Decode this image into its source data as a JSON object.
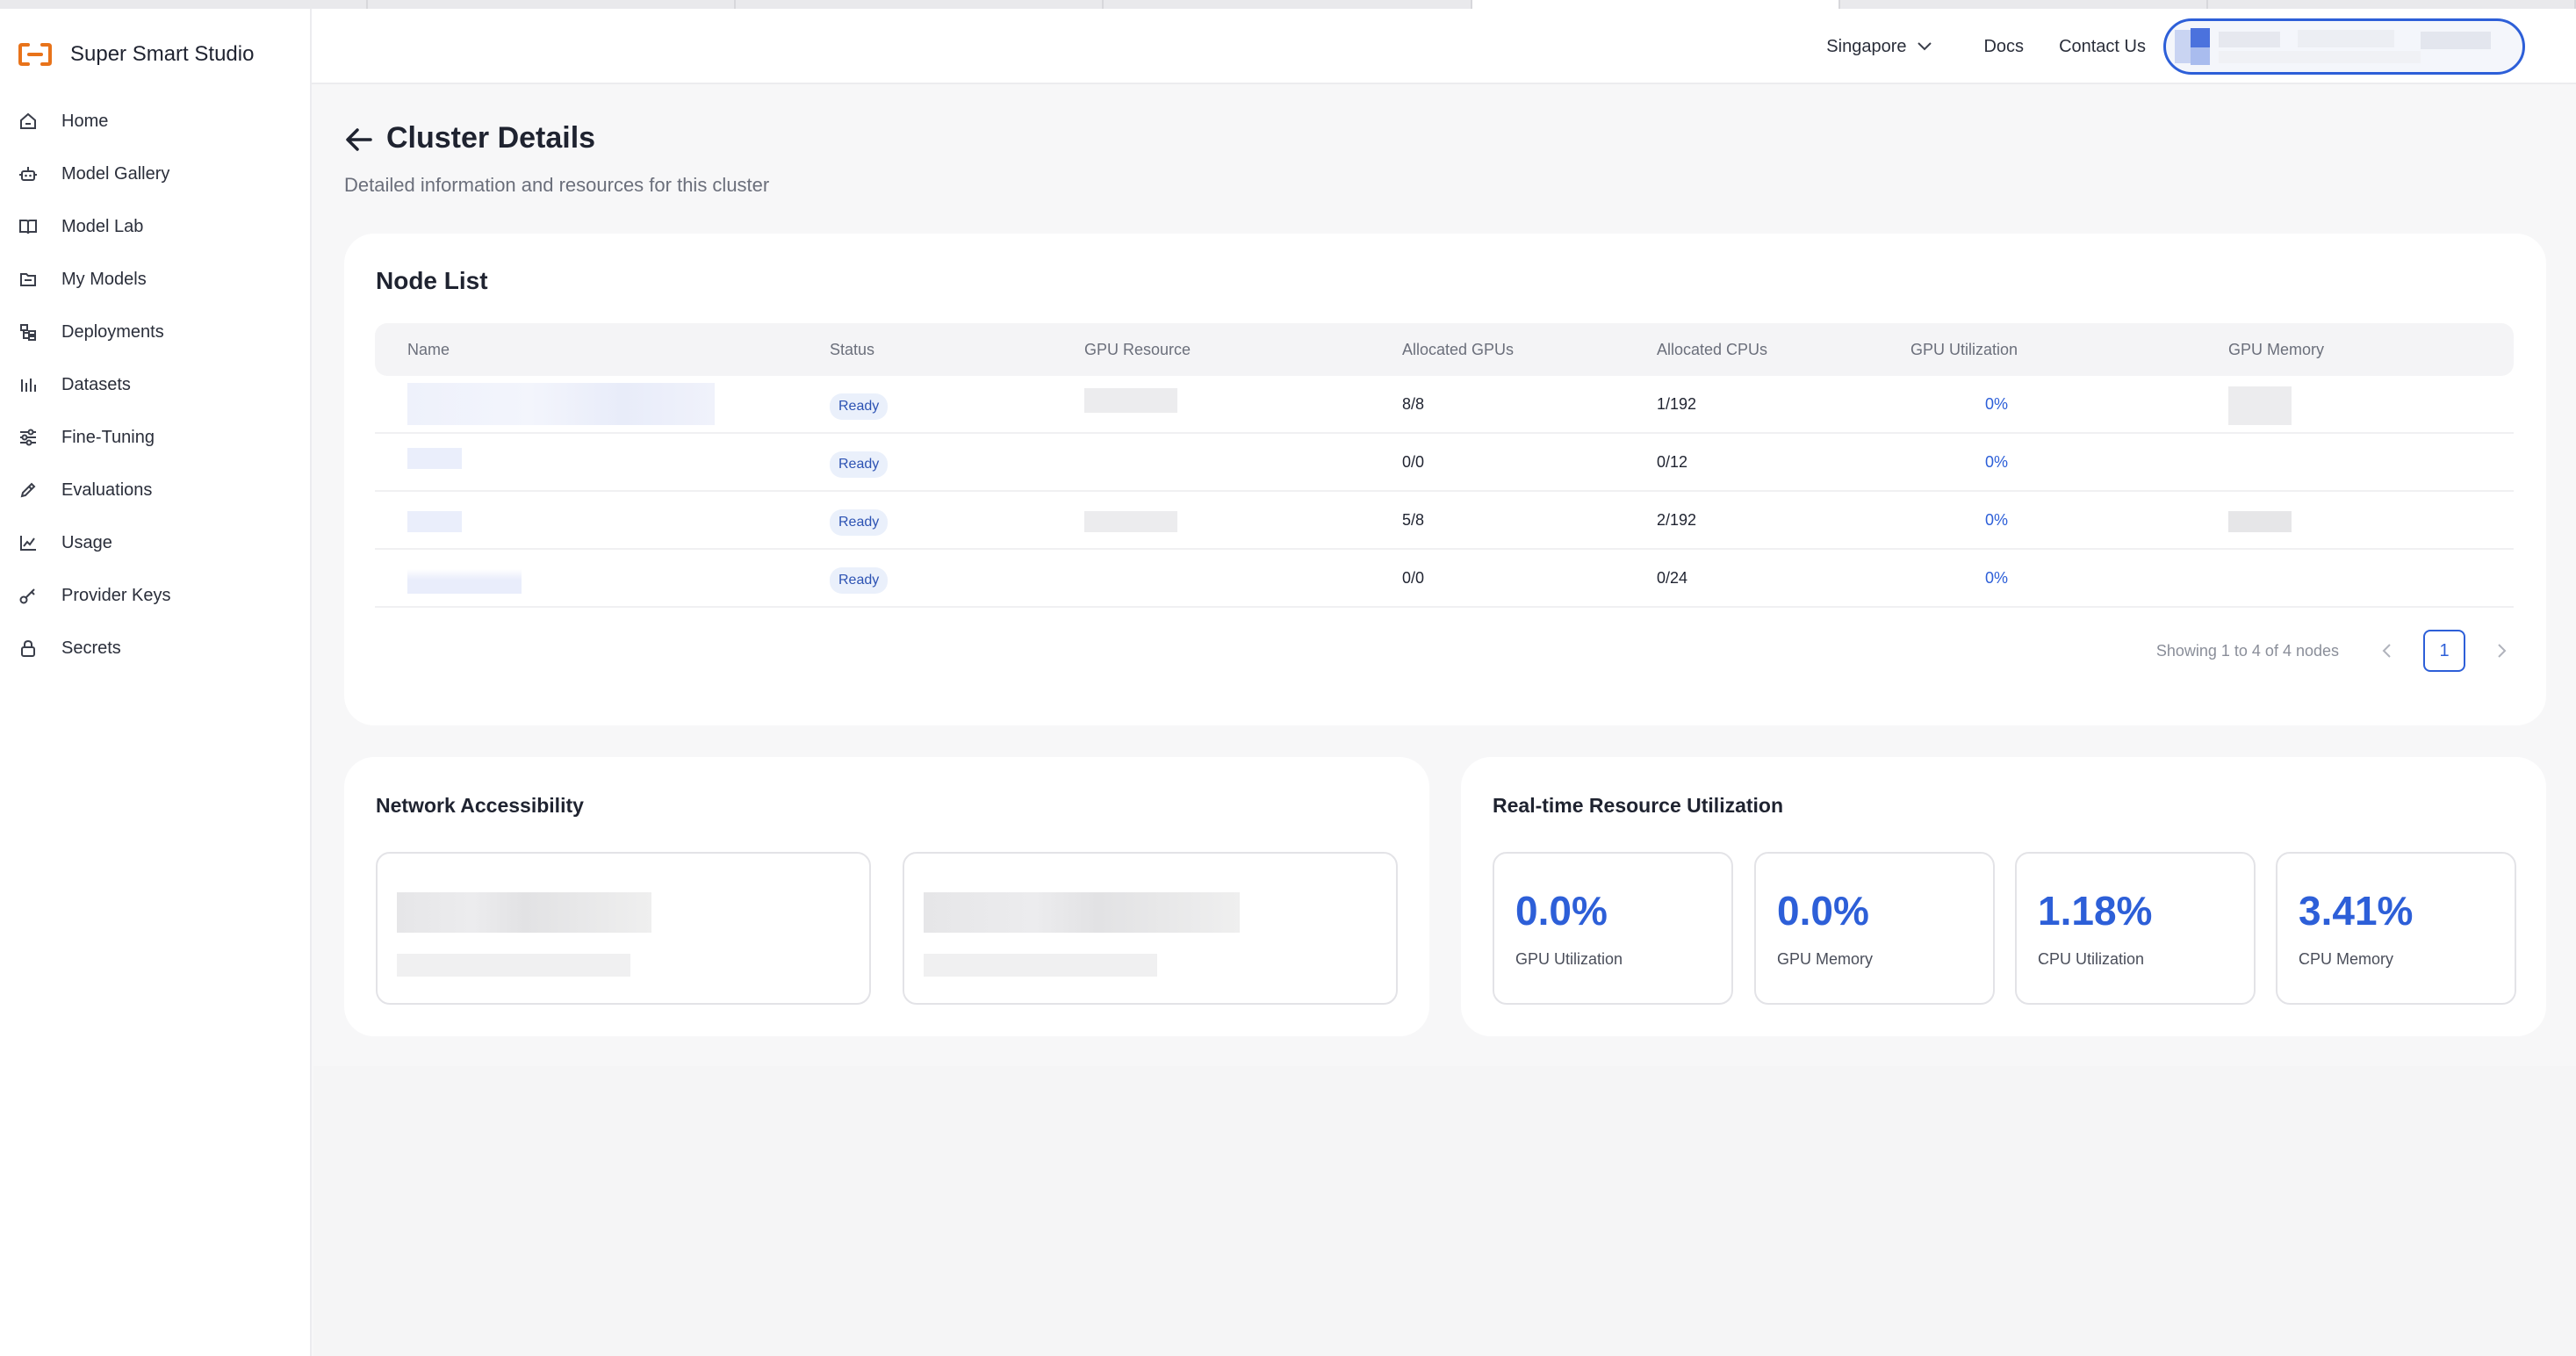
{
  "app": {
    "name": "Super Smart Studio",
    "logo_icon": "bracket-logo-icon",
    "accent": "#e8731a"
  },
  "sidebar": {
    "items": [
      {
        "label": "Home",
        "icon": "home-icon"
      },
      {
        "label": "Model Gallery",
        "icon": "robot-icon"
      },
      {
        "label": "Model Lab",
        "icon": "book-icon"
      },
      {
        "label": "My Models",
        "icon": "folder-icon"
      },
      {
        "label": "Deployments",
        "icon": "deploy-icon"
      },
      {
        "label": "Datasets",
        "icon": "bar-chart-icon"
      },
      {
        "label": "Fine-Tuning",
        "icon": "sliders-icon"
      },
      {
        "label": "Evaluations",
        "icon": "pencil-icon"
      },
      {
        "label": "Usage",
        "icon": "usage-chart-icon"
      },
      {
        "label": "Provider Keys",
        "icon": "key-icon"
      },
      {
        "label": "Secrets",
        "icon": "lock-icon"
      }
    ]
  },
  "header": {
    "region": "Singapore",
    "docs": "Docs",
    "contact": "Contact Us"
  },
  "page": {
    "title": "Cluster Details",
    "subtitle": "Detailed information and resources for this cluster"
  },
  "node_list": {
    "title": "Node List",
    "columns": [
      "Name",
      "Status",
      "GPU Resource",
      "Allocated GPUs",
      "Allocated CPUs",
      "GPU Utilization",
      "GPU Memory"
    ],
    "rows": [
      {
        "status": "Ready",
        "allocated_gpus": "8/8",
        "allocated_cpus": "1/192",
        "gpu_utilization": "0%"
      },
      {
        "status": "Ready",
        "allocated_gpus": "0/0",
        "allocated_cpus": "0/12",
        "gpu_utilization": "0%"
      },
      {
        "status": "Ready",
        "allocated_gpus": "5/8",
        "allocated_cpus": "2/192",
        "gpu_utilization": "0%"
      },
      {
        "status": "Ready",
        "allocated_gpus": "0/0",
        "allocated_cpus": "0/24",
        "gpu_utilization": "0%"
      }
    ],
    "pagination": {
      "info": "Showing 1 to 4 of 4 nodes",
      "current_page": "1"
    }
  },
  "network": {
    "title": "Network Accessibility"
  },
  "utilization": {
    "title": "Real-time Resource Utilization",
    "metrics": [
      {
        "value": "0.0%",
        "label": "GPU Utilization"
      },
      {
        "value": "0.0%",
        "label": "GPU Memory"
      },
      {
        "value": "1.18%",
        "label": "CPU Utilization"
      },
      {
        "value": "3.41%",
        "label": "CPU Memory"
      }
    ]
  },
  "colors": {
    "primary": "#2d5fd8",
    "badge_bg": "#eaf0fb",
    "page_bg": "#f7f7f8"
  }
}
